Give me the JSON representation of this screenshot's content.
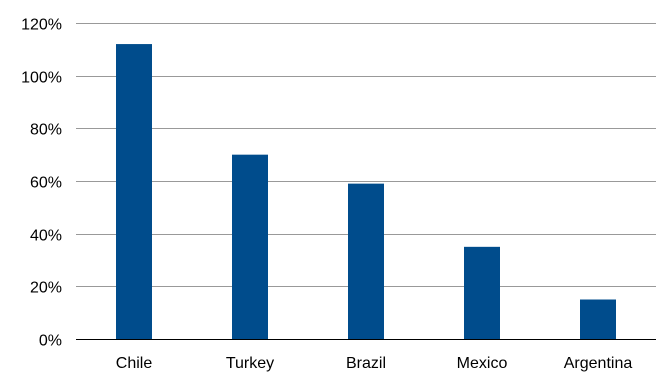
{
  "chart_data": {
    "type": "bar",
    "title": "",
    "xlabel": "",
    "ylabel": "",
    "categories": [
      "Chile",
      "Turkey",
      "Brazil",
      "Mexico",
      "Argentina"
    ],
    "values": [
      112,
      70,
      59,
      35,
      15
    ],
    "ylim": [
      0,
      120
    ],
    "yticks": [
      0,
      20,
      40,
      60,
      80,
      100,
      120
    ],
    "ytick_labels": [
      "0%",
      "20%",
      "40%",
      "60%",
      "80%",
      "100%",
      "120%"
    ],
    "y_unit": "%",
    "grid": true,
    "legend": "none",
    "bar_color": "#004C8C",
    "grid_color": "#999999"
  }
}
